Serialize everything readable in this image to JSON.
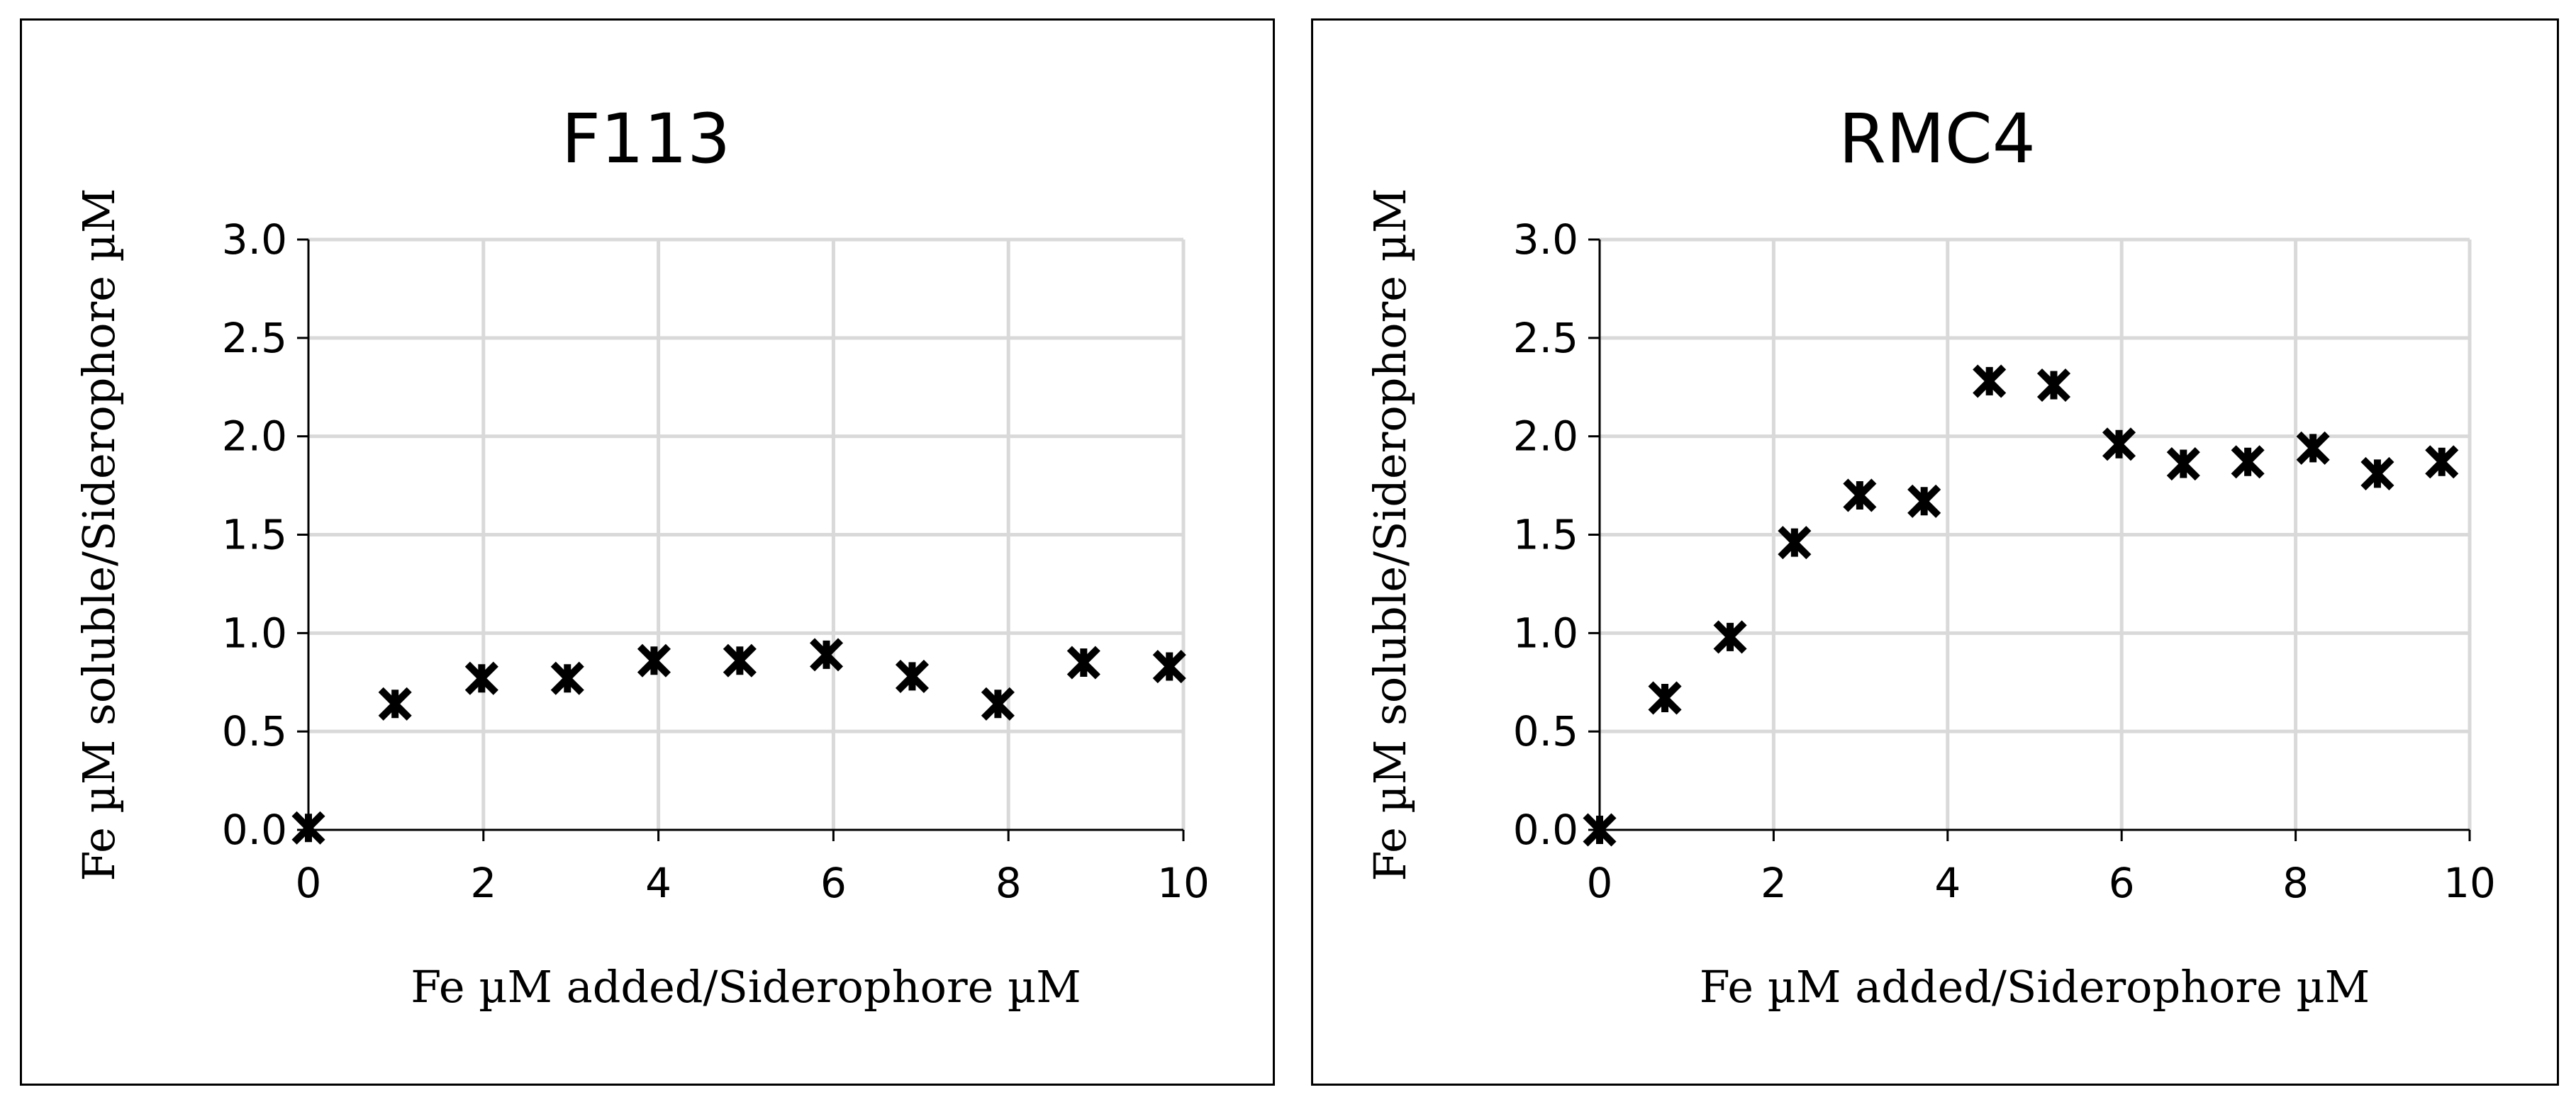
{
  "chart_data": [
    {
      "type": "scatter",
      "title": "F113",
      "xlabel": "Fe µM added/Siderophore µM",
      "ylabel": "Fe µM soluble/Siderophore µM",
      "xlim": [
        0,
        10
      ],
      "ylim": [
        0,
        3.0
      ],
      "x_ticks": [
        "0",
        "2",
        "4",
        "6",
        "8",
        "10"
      ],
      "y_ticks": [
        "0.0",
        "0.5",
        "1.0",
        "1.5",
        "2.0",
        "2.5",
        "3.0"
      ],
      "grid": true,
      "marker": "asterisk",
      "series": [
        {
          "x": [
            0,
            0.99,
            1.98,
            2.96,
            3.95,
            4.93,
            5.92,
            6.9,
            7.88,
            8.86,
            9.84
          ],
          "y": [
            0.01,
            0.64,
            0.77,
            0.77,
            0.86,
            0.86,
            0.89,
            0.78,
            0.64,
            0.85,
            0.83
          ]
        }
      ]
    },
    {
      "type": "scatter",
      "title": "RMC4",
      "xlabel": "Fe µM added/Siderophore µM",
      "ylabel": "Fe µM soluble/Siderophore µM",
      "xlim": [
        0,
        10
      ],
      "ylim": [
        0,
        3.0
      ],
      "x_ticks": [
        "0",
        "2",
        "4",
        "6",
        "8",
        "10"
      ],
      "y_ticks": [
        "0.0",
        "0.5",
        "1.0",
        "1.5",
        "2.0",
        "2.5",
        "3.0"
      ],
      "grid": true,
      "marker": "asterisk",
      "series": [
        {
          "x": [
            0,
            0.75,
            1.5,
            2.24,
            2.99,
            3.73,
            4.48,
            5.22,
            5.97,
            6.71,
            7.45,
            8.2,
            8.94,
            9.68
          ],
          "y": [
            0.0,
            0.67,
            0.98,
            1.46,
            1.7,
            1.67,
            2.28,
            2.26,
            1.96,
            1.86,
            1.87,
            1.94,
            1.81,
            1.87
          ]
        }
      ]
    }
  ]
}
